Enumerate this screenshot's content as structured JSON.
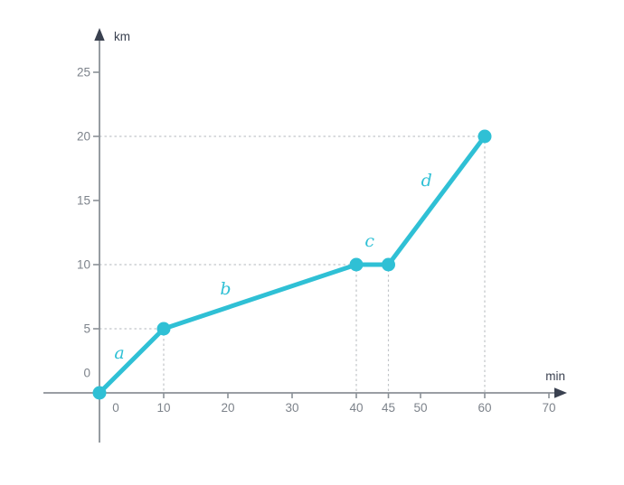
{
  "page": {
    "background": "#ffffff"
  },
  "chart_data": {
    "type": "line",
    "title": "",
    "xlabel": "min",
    "ylabel": "km",
    "xlim": [
      0,
      70
    ],
    "ylim": [
      0,
      25
    ],
    "x_ticks": [
      0,
      10,
      20,
      30,
      40,
      45,
      50,
      60,
      70
    ],
    "x_tick_labels": [
      "0",
      "10",
      "20",
      "30",
      "40",
      "45",
      "50",
      "60",
      "70"
    ],
    "y_ticks": [
      0,
      5,
      10,
      15,
      20,
      25
    ],
    "y_tick_labels": [
      "0",
      "5",
      "10",
      "15",
      "20",
      "25"
    ],
    "grid": "dashed guide lines to data points only",
    "legend": "none",
    "points": [
      [
        0,
        0
      ],
      [
        10,
        5
      ],
      [
        40,
        10
      ],
      [
        45,
        10
      ],
      [
        60,
        20
      ]
    ],
    "segments": [
      {
        "label": "a",
        "from": [
          0,
          0
        ],
        "to": [
          10,
          5
        ]
      },
      {
        "label": "b",
        "from": [
          10,
          5
        ],
        "to": [
          40,
          10
        ]
      },
      {
        "label": "c",
        "from": [
          40,
          10
        ],
        "to": [
          45,
          10
        ]
      },
      {
        "label": "d",
        "from": [
          45,
          10
        ],
        "to": [
          60,
          20
        ]
      }
    ],
    "h_guides": [
      {
        "y": 5,
        "x_to": 10
      },
      {
        "y": 10,
        "x_to": 40
      },
      {
        "y": 20,
        "x_to": 60
      }
    ],
    "v_guides": [
      {
        "x": 10,
        "y_to": 5
      },
      {
        "x": 40,
        "y_to": 10
      },
      {
        "x": 45,
        "y_to": 10
      },
      {
        "x": 60,
        "y_to": 20
      }
    ],
    "colors": {
      "line": "#2fc0d5",
      "point": "#2fc0d5",
      "segment_label": "#2fc0d5",
      "axis_line": "#8b9197",
      "axis_arrow": "#3a4150",
      "axis_unit_label": "#3a4150",
      "tick_label": "#7d838b",
      "guide": "#c2c5c9"
    },
    "label_offsets": {
      "a": [
        -13.5,
        -8.5
      ],
      "b": [
        -38,
        -8.5
      ],
      "c": [
        -3,
        -26
      ],
      "d": [
        -11,
        -22
      ]
    }
  }
}
